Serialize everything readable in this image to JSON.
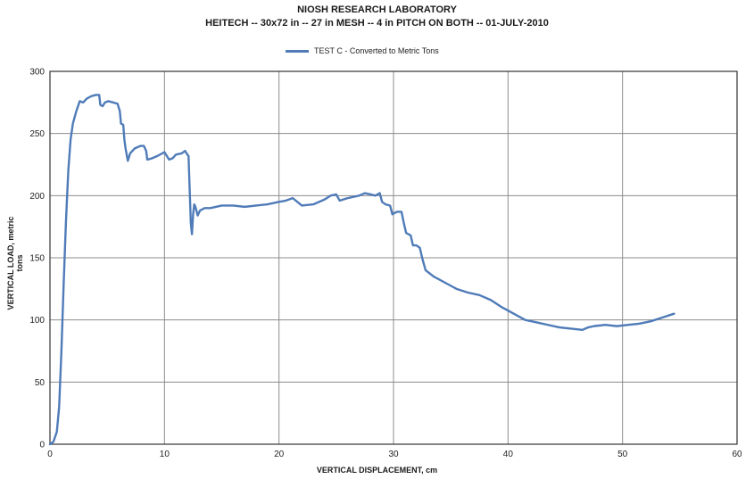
{
  "chart_data": {
    "type": "line",
    "title": "NIOSH RESEARCH LABORATORY",
    "subtitle": "HEITECH -- 30x72 in -- 27 in MESH -- 4 in PITCH ON BOTH -- 01-JULY-2010",
    "xlabel": "VERTICAL DISPLACEMENT,  cm",
    "ylabel": "VERTICAL LOAD, metric tons",
    "xlim": [
      0,
      60
    ],
    "ylim": [
      0,
      300
    ],
    "x_ticks": [
      "0",
      "10",
      "20",
      "30",
      "40",
      "50",
      "60"
    ],
    "y_ticks": [
      "0",
      "50",
      "100",
      "150",
      "200",
      "250",
      "300"
    ],
    "grid": true,
    "legend": "top-center",
    "series": [
      {
        "name": "TEST C - Converted to Metric Tons",
        "color": "#4f7bb8",
        "points": [
          [
            0.0,
            0
          ],
          [
            0.3,
            2
          ],
          [
            0.6,
            10
          ],
          [
            0.8,
            30
          ],
          [
            1.0,
            75
          ],
          [
            1.2,
            130
          ],
          [
            1.4,
            180
          ],
          [
            1.6,
            220
          ],
          [
            1.8,
            245
          ],
          [
            2.0,
            258
          ],
          [
            2.3,
            268
          ],
          [
            2.6,
            276
          ],
          [
            2.9,
            275
          ],
          [
            3.2,
            278
          ],
          [
            3.6,
            280
          ],
          [
            4.0,
            281
          ],
          [
            4.3,
            281
          ],
          [
            4.4,
            273
          ],
          [
            4.6,
            272
          ],
          [
            4.8,
            275
          ],
          [
            5.1,
            276
          ],
          [
            5.5,
            275
          ],
          [
            5.9,
            274
          ],
          [
            6.1,
            268
          ],
          [
            6.2,
            258
          ],
          [
            6.4,
            257
          ],
          [
            6.5,
            245
          ],
          [
            6.6,
            238
          ],
          [
            6.8,
            228
          ],
          [
            7.0,
            234
          ],
          [
            7.4,
            238
          ],
          [
            7.9,
            240
          ],
          [
            8.2,
            240
          ],
          [
            8.4,
            236
          ],
          [
            8.5,
            229
          ],
          [
            8.9,
            230
          ],
          [
            9.4,
            232
          ],
          [
            10.0,
            235
          ],
          [
            10.2,
            232
          ],
          [
            10.4,
            229
          ],
          [
            10.7,
            230
          ],
          [
            11.0,
            233
          ],
          [
            11.5,
            234
          ],
          [
            11.8,
            236
          ],
          [
            12.0,
            233
          ],
          [
            12.1,
            232
          ],
          [
            12.2,
            205
          ],
          [
            12.3,
            178
          ],
          [
            12.4,
            169
          ],
          [
            12.5,
            185
          ],
          [
            12.6,
            193
          ],
          [
            12.7,
            191
          ],
          [
            12.9,
            184
          ],
          [
            13.1,
            188
          ],
          [
            13.5,
            190
          ],
          [
            14.0,
            190
          ],
          [
            15.0,
            192
          ],
          [
            16.0,
            192
          ],
          [
            17.0,
            191
          ],
          [
            18.0,
            192
          ],
          [
            19.0,
            193
          ],
          [
            20.0,
            195
          ],
          [
            20.6,
            196
          ],
          [
            21.2,
            198
          ],
          [
            21.6,
            195
          ],
          [
            22.0,
            192
          ],
          [
            23.0,
            193
          ],
          [
            24.0,
            197
          ],
          [
            24.5,
            200
          ],
          [
            25.0,
            201
          ],
          [
            25.3,
            196
          ],
          [
            26.0,
            198
          ],
          [
            27.0,
            200
          ],
          [
            27.5,
            202
          ],
          [
            28.0,
            201
          ],
          [
            28.4,
            200
          ],
          [
            28.8,
            202
          ],
          [
            29.0,
            195
          ],
          [
            29.3,
            193
          ],
          [
            29.7,
            192
          ],
          [
            29.9,
            185
          ],
          [
            30.3,
            187
          ],
          [
            30.7,
            187
          ],
          [
            30.9,
            178
          ],
          [
            31.1,
            170
          ],
          [
            31.5,
            168
          ],
          [
            31.7,
            160
          ],
          [
            32.0,
            160
          ],
          [
            32.3,
            158
          ],
          [
            32.5,
            150
          ],
          [
            32.8,
            140
          ],
          [
            33.5,
            135
          ],
          [
            34.5,
            130
          ],
          [
            35.5,
            125
          ],
          [
            36.5,
            122
          ],
          [
            37.5,
            120
          ],
          [
            38.5,
            116
          ],
          [
            39.5,
            110
          ],
          [
            40.5,
            105
          ],
          [
            41.5,
            100
          ],
          [
            42.5,
            98
          ],
          [
            43.5,
            96
          ],
          [
            44.5,
            94
          ],
          [
            45.5,
            93
          ],
          [
            46.5,
            92
          ],
          [
            47.0,
            94
          ],
          [
            47.5,
            95
          ],
          [
            48.5,
            96
          ],
          [
            49.5,
            95
          ],
          [
            50.5,
            96
          ],
          [
            51.5,
            97
          ],
          [
            52.5,
            99
          ],
          [
            53.5,
            102
          ],
          [
            54.5,
            105
          ]
        ]
      }
    ]
  }
}
